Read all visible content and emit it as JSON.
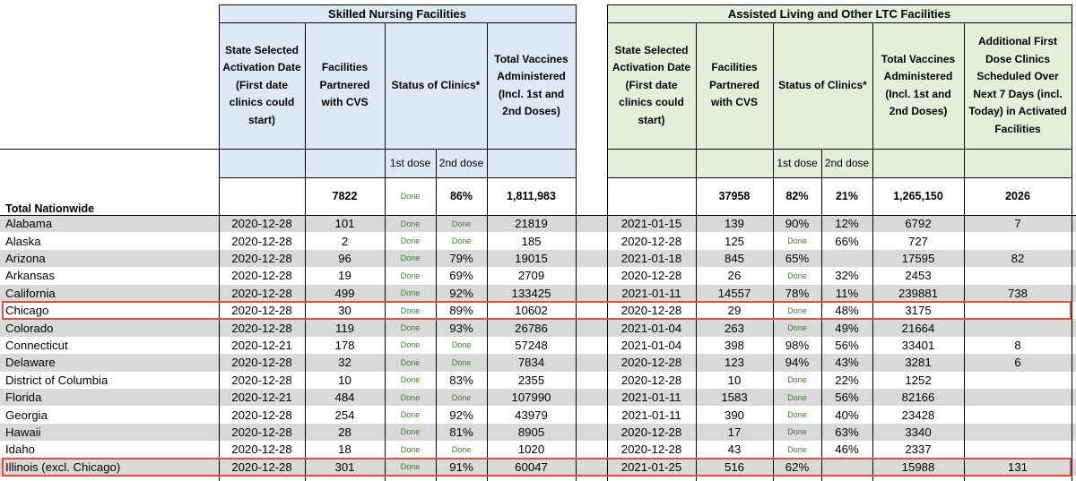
{
  "headers": {
    "snf_title": "Skilled Nursing Facilities",
    "alf_title": "Assisted Living and Other LTC Facilities",
    "activation": "State Selected Activation Date (First date clinics could start)",
    "partnered": "Facilities Partnered with CVS",
    "status": "Status of  Clinics*",
    "vaccines": "Total Vaccines Administered (Incl. 1st and 2nd Doses)",
    "additional": "Additional First Dose Clinics Scheduled Over Next 7 Days (incl. Today) in Activated Facilities",
    "dose1": "1st dose",
    "dose2": "2nd dose"
  },
  "total": {
    "label": "Total Nationwide",
    "snf": [
      "",
      "7822",
      "Done",
      "86%",
      "1,811,983"
    ],
    "alf": [
      "",
      "37958",
      "82%",
      "21%",
      "1,265,150",
      "2026"
    ]
  },
  "rows": [
    {
      "name": "Alabama",
      "snf": [
        "2020-12-28",
        "101",
        "Done",
        "Done",
        "21819"
      ],
      "alf": [
        "2021-01-15",
        "139",
        "90%",
        "12%",
        "6792",
        "7"
      ]
    },
    {
      "name": "Alaska",
      "snf": [
        "2020-12-28",
        "2",
        "Done",
        "Done",
        "185"
      ],
      "alf": [
        "2020-12-28",
        "125",
        "Done",
        "66%",
        "727",
        ""
      ]
    },
    {
      "name": "Arizona",
      "snf": [
        "2020-12-28",
        "96",
        "Done",
        "79%",
        "19015"
      ],
      "alf": [
        "2021-01-18",
        "845",
        "65%",
        "",
        "17595",
        "82"
      ]
    },
    {
      "name": "Arkansas",
      "snf": [
        "2020-12-28",
        "19",
        "Done",
        "69%",
        "2709"
      ],
      "alf": [
        "2020-12-28",
        "26",
        "Done",
        "32%",
        "2453",
        ""
      ]
    },
    {
      "name": "California",
      "snf": [
        "2020-12-28",
        "499",
        "Done",
        "92%",
        "133425"
      ],
      "alf": [
        "2021-01-11",
        "14557",
        "78%",
        "11%",
        "239881",
        "738"
      ]
    },
    {
      "name": "Chicago",
      "snf": [
        "2020-12-28",
        "30",
        "Done",
        "89%",
        "10602"
      ],
      "alf": [
        "2020-12-28",
        "29",
        "Done",
        "48%",
        "3175",
        ""
      ]
    },
    {
      "name": "Colorado",
      "snf": [
        "2020-12-28",
        "119",
        "Done",
        "93%",
        "26786"
      ],
      "alf": [
        "2021-01-04",
        "263",
        "Done",
        "49%",
        "21664",
        ""
      ]
    },
    {
      "name": "Connecticut",
      "snf": [
        "2020-12-21",
        "178",
        "Done",
        "Done",
        "57248"
      ],
      "alf": [
        "2021-01-04",
        "398",
        "98%",
        "56%",
        "33401",
        "8"
      ]
    },
    {
      "name": "Delaware",
      "snf": [
        "2020-12-28",
        "32",
        "Done",
        "Done",
        "7834"
      ],
      "alf": [
        "2020-12-28",
        "123",
        "94%",
        "43%",
        "3281",
        "6"
      ]
    },
    {
      "name": "District of Columbia",
      "snf": [
        "2020-12-28",
        "10",
        "Done",
        "83%",
        "2355"
      ],
      "alf": [
        "2020-12-28",
        "10",
        "Done",
        "22%",
        "1252",
        ""
      ]
    },
    {
      "name": "Florida",
      "snf": [
        "2020-12-21",
        "484",
        "Done",
        "Done",
        "107990"
      ],
      "alf": [
        "2021-01-11",
        "1583",
        "Done",
        "56%",
        "82166",
        ""
      ]
    },
    {
      "name": "Georgia",
      "snf": [
        "2020-12-28",
        "254",
        "Done",
        "92%",
        "43979"
      ],
      "alf": [
        "2021-01-11",
        "390",
        "Done",
        "40%",
        "23428",
        ""
      ]
    },
    {
      "name": "Hawaii",
      "snf": [
        "2020-12-28",
        "28",
        "Done",
        "81%",
        "8905"
      ],
      "alf": [
        "2020-12-28",
        "17",
        "Done",
        "63%",
        "3340",
        ""
      ]
    },
    {
      "name": "Idaho",
      "snf": [
        "2020-12-28",
        "18",
        "Done",
        "Done",
        "1020"
      ],
      "alf": [
        "2020-12-28",
        "43",
        "Done",
        "46%",
        "2337",
        ""
      ]
    },
    {
      "name": "Illinois (excl. Chicago)",
      "snf": [
        "2020-12-28",
        "301",
        "Done",
        "91%",
        "60047"
      ],
      "alf": [
        "2021-01-25",
        "516",
        "62%",
        "",
        "15988",
        "131"
      ]
    }
  ],
  "colors": {
    "snf_header": "#dde9f5",
    "alf_header": "#e3efd9",
    "row_shade": "#d9d9d9",
    "done_text": "#2e8b22",
    "highlight_border": "#e0503c"
  }
}
